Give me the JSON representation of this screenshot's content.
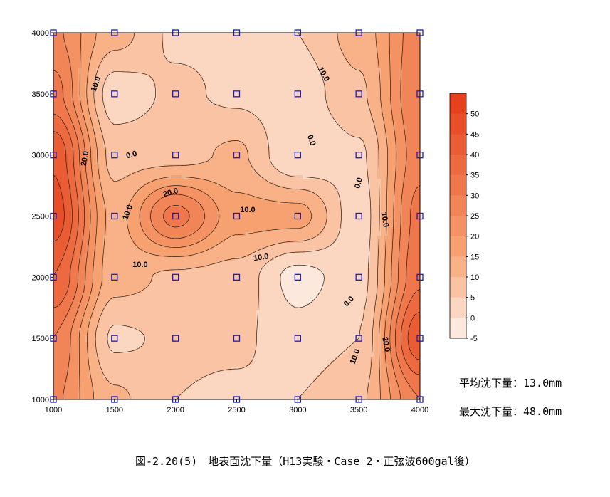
{
  "chart_data": {
    "type": "heatmap",
    "x_ticks": [
      1000,
      1500,
      2000,
      2500,
      3000,
      3500,
      4000
    ],
    "y_ticks": [
      1000,
      1500,
      2000,
      2500,
      3000,
      3500,
      4000
    ],
    "xlim": [
      1000,
      4000
    ],
    "ylim": [
      1000,
      4000
    ],
    "x": [
      1000,
      1500,
      2000,
      2500,
      3000,
      3500,
      4000
    ],
    "y": [
      4000,
      3500,
      3000,
      2500,
      2000,
      1500,
      1000
    ],
    "z": [
      [
        26,
        12,
        4,
        4,
        5,
        12,
        28
      ],
      [
        32,
        2,
        6,
        4,
        2,
        9,
        30
      ],
      [
        44,
        8,
        8,
        11,
        0,
        4,
        28
      ],
      [
        48,
        13,
        32,
        17,
        17,
        2,
        32
      ],
      [
        40,
        12,
        9,
        8,
        -2,
        3,
        34
      ],
      [
        30,
        4,
        6,
        6,
        2,
        5,
        44
      ],
      [
        26,
        11,
        5,
        4,
        5,
        9,
        30
      ]
    ],
    "contour_levels": [
      -5,
      0,
      5,
      10,
      15,
      20,
      25,
      30,
      35,
      40,
      45,
      50,
      55
    ],
    "contour_labels": [
      {
        "text": "10.0",
        "x": 1350,
        "y": 3580,
        "rot": -70
      },
      {
        "text": "0.0",
        "x": 1640,
        "y": 3000,
        "rot": -15
      },
      {
        "text": "20.0",
        "x": 1260,
        "y": 2970,
        "rot": -80
      },
      {
        "text": "10.0",
        "x": 1610,
        "y": 2530,
        "rot": -70
      },
      {
        "text": "20.0",
        "x": 1960,
        "y": 2690,
        "rot": -15
      },
      {
        "text": "10.0",
        "x": 2590,
        "y": 2550,
        "rot": 0
      },
      {
        "text": "10.0",
        "x": 2700,
        "y": 2160,
        "rot": -8
      },
      {
        "text": "10.0",
        "x": 1710,
        "y": 2100,
        "rot": 0
      },
      {
        "text": "0.0",
        "x": 3110,
        "y": 3120,
        "rot": 70
      },
      {
        "text": "0.0",
        "x": 3500,
        "y": 2770,
        "rot": -75
      },
      {
        "text": "10.0",
        "x": 3210,
        "y": 3660,
        "rot": 60
      },
      {
        "text": "10.0",
        "x": 3710,
        "y": 2470,
        "rot": 80
      },
      {
        "text": "0.0",
        "x": 3420,
        "y": 1800,
        "rot": -45
      },
      {
        "text": "20.0",
        "x": 3720,
        "y": 1450,
        "rot": 80
      },
      {
        "text": "10.0",
        "x": 3470,
        "y": 1350,
        "rot": -70
      }
    ],
    "colorbar": {
      "ticks": [
        50,
        45,
        40,
        35,
        30,
        25,
        20,
        15,
        10,
        5,
        0,
        -5
      ],
      "min": -5,
      "max": 55
    },
    "colors": {
      "low": "#fdf1ea",
      "mid": "#f8a474",
      "high": "#e43a16",
      "marker": "#1a1acc"
    }
  },
  "stats": {
    "avg": "平均沈下量：13.0mm",
    "max": "最大沈下量：48.0mm"
  },
  "caption": "図-2.20(5)　地表面沈下量（H13実験・Case 2・正弦波600gal後）"
}
